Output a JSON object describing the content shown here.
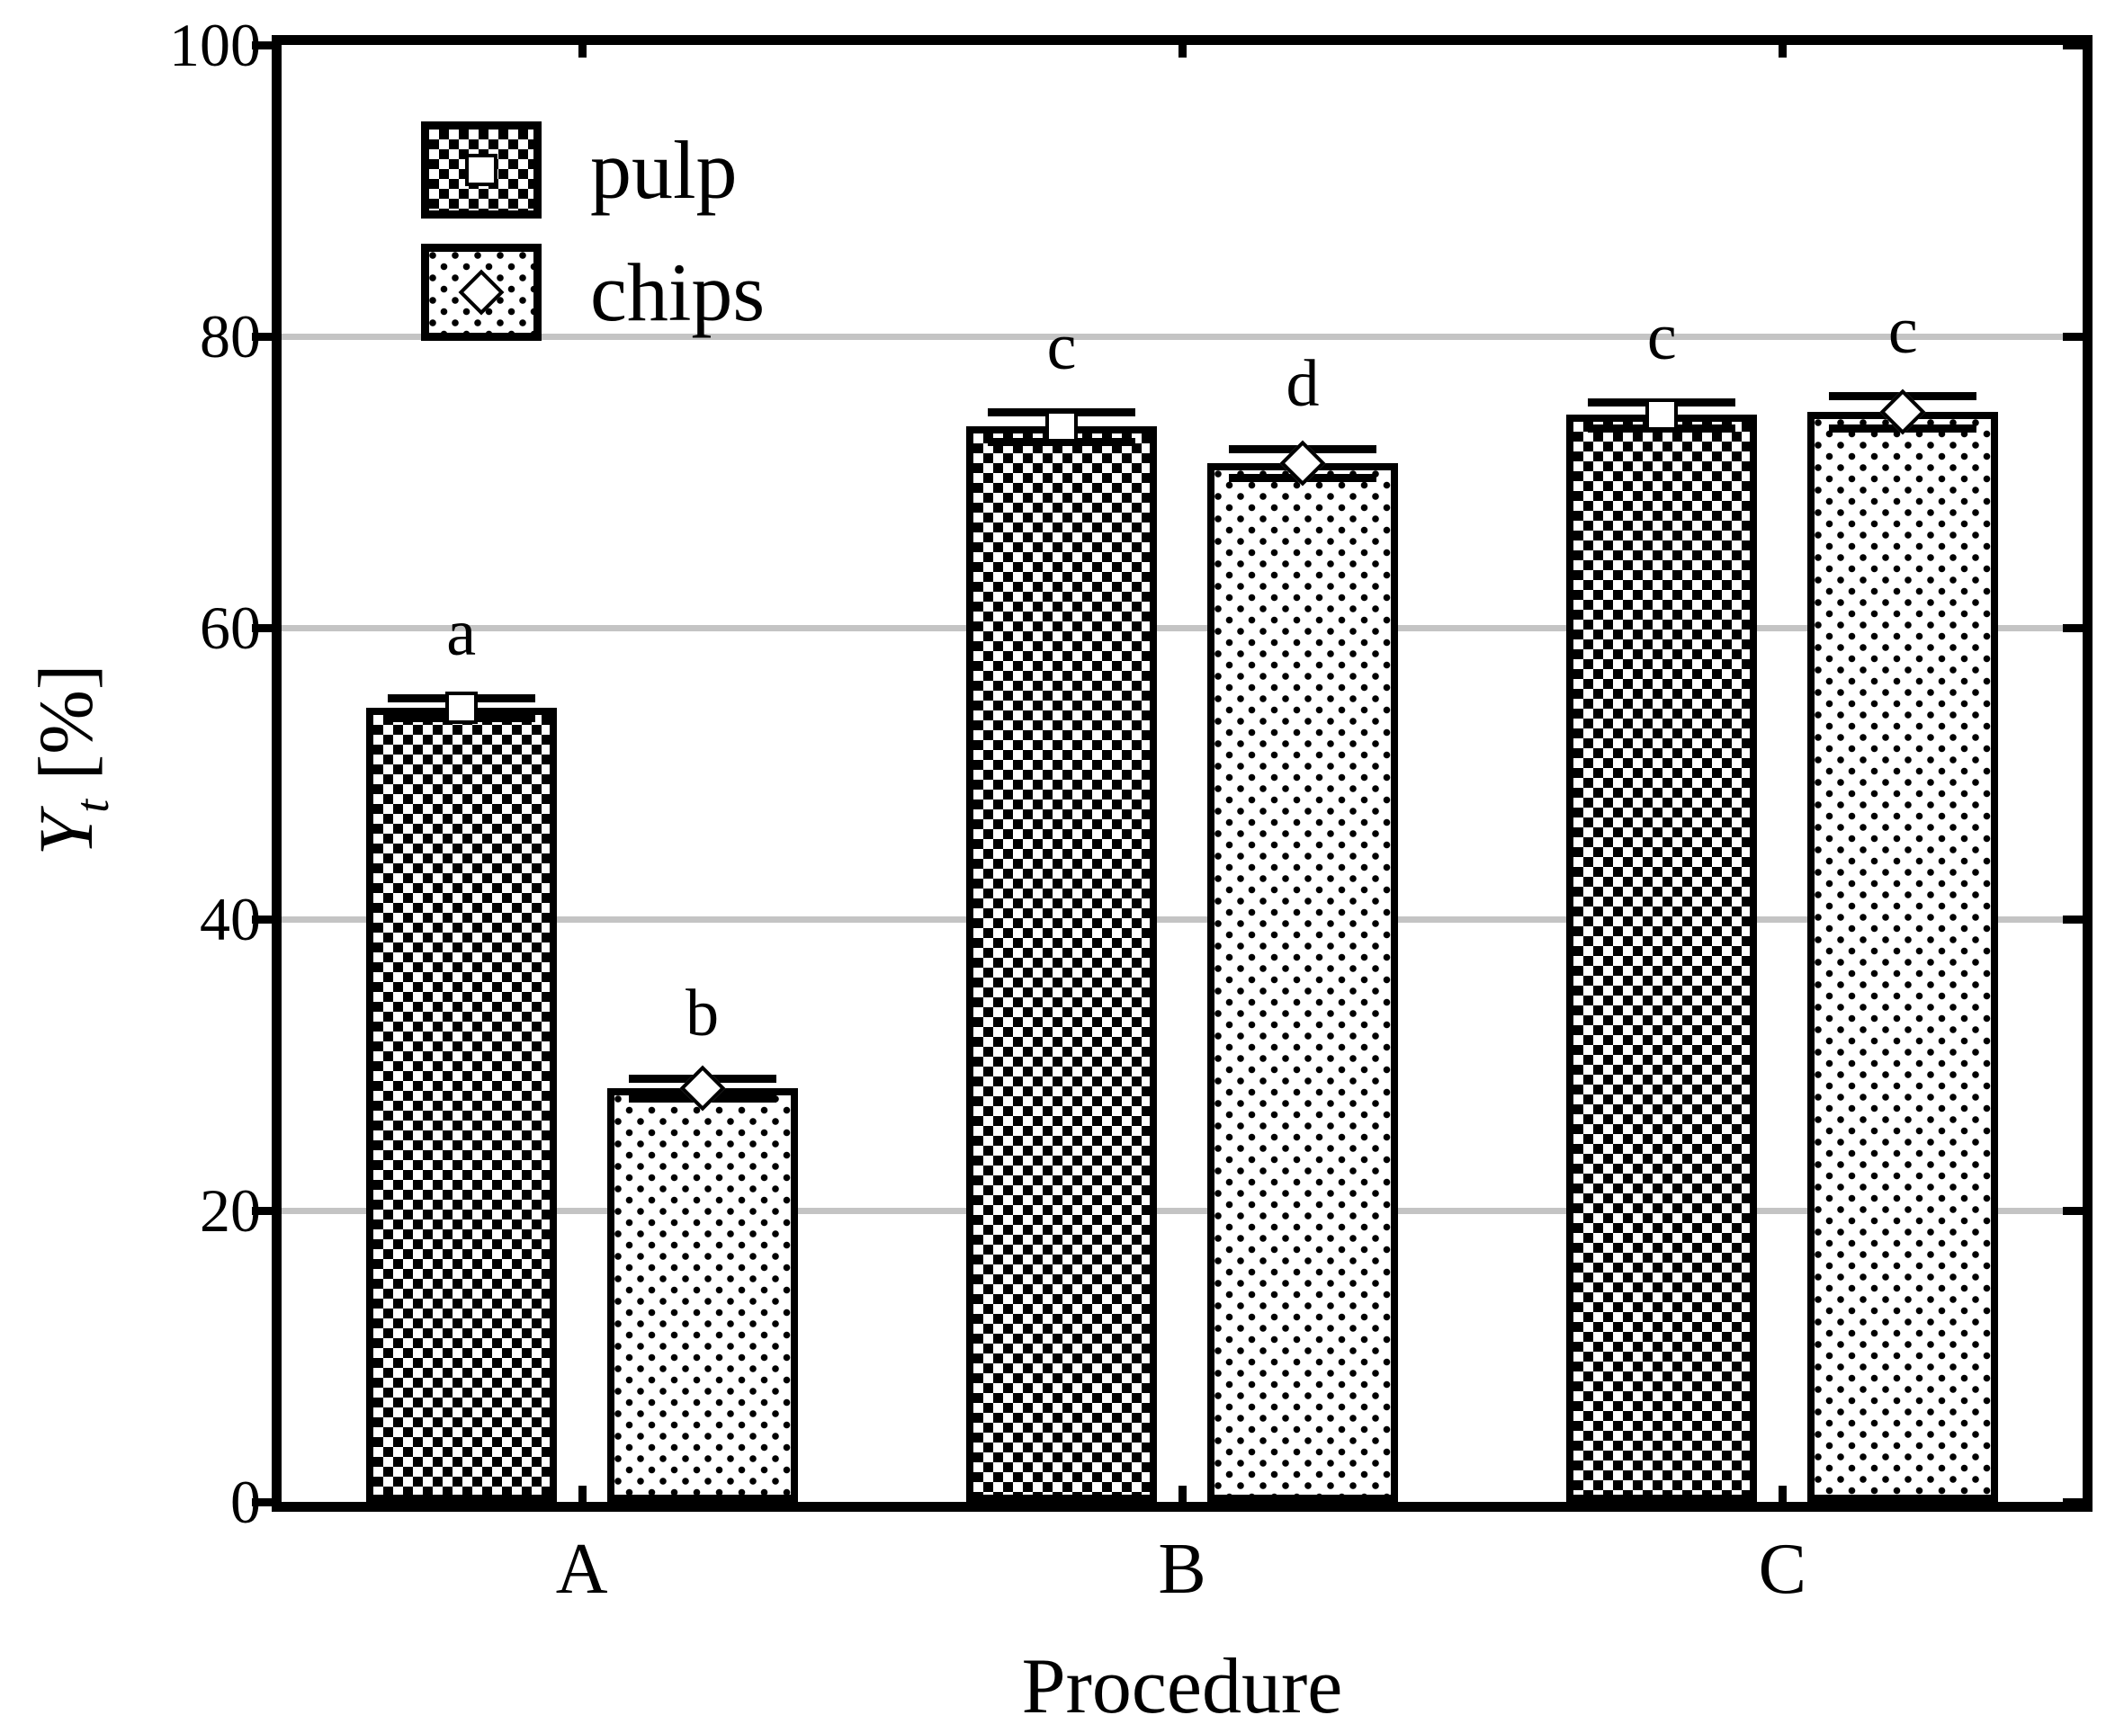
{
  "figure": {
    "y_axis": {
      "title_var": "Y",
      "title_sub": "t",
      "title_unit": " [%]",
      "tick_labels": [
        "100",
        "80",
        "60",
        "40",
        "20",
        "0"
      ]
    },
    "x_axis": {
      "title": "Procedure",
      "tick_labels": [
        "A",
        "B",
        "C"
      ]
    },
    "legend": {
      "items": [
        {
          "label": "pulp",
          "marker": "square",
          "pattern": "checker"
        },
        {
          "label": "chips",
          "marker": "diamond",
          "pattern": "dots"
        }
      ]
    },
    "colors": {
      "ink": "#000000",
      "grid": "#c4c4c4",
      "background": "#ffffff"
    }
  },
  "chart_data": {
    "type": "bar",
    "categories": [
      "A",
      "B",
      "C"
    ],
    "series": [
      {
        "name": "pulp",
        "pattern": "checker",
        "marker": "square",
        "values": [
          54.5,
          73.8,
          74.6
        ],
        "errors": [
          0.7,
          1.0,
          0.9
        ],
        "letters": [
          "a",
          "c",
          "c"
        ]
      },
      {
        "name": "chips",
        "pattern": "dots",
        "marker": "diamond",
        "values": [
          28.4,
          71.3,
          74.8
        ],
        "errors": [
          0.7,
          1.0,
          1.1
        ],
        "letters": [
          "b",
          "d",
          "c"
        ]
      }
    ],
    "title": "",
    "xlabel": "Procedure",
    "ylabel": "Yt [%]",
    "ylim": [
      0,
      100
    ],
    "yticks": [
      0,
      20,
      40,
      60,
      80,
      100
    ],
    "grid_yticks": [
      20,
      40,
      60,
      80
    ],
    "grid": true,
    "legend_position": "top-left-inside"
  }
}
